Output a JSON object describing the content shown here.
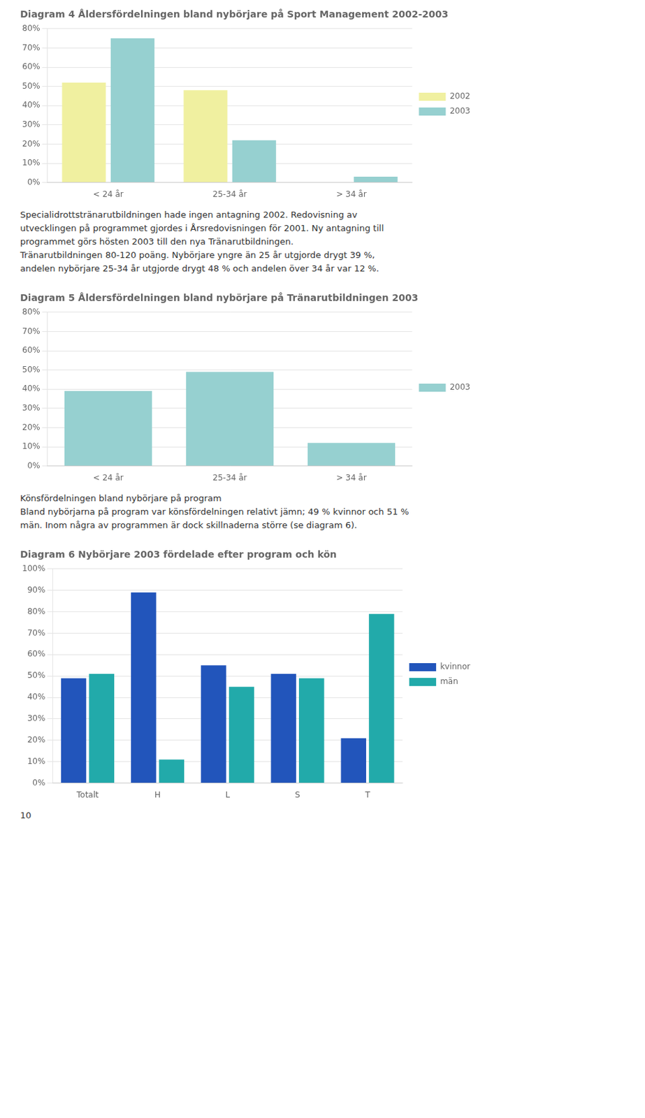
{
  "chart_data": [
    {
      "type": "bar",
      "title": "Diagram 4 Åldersfördelningen bland nybörjare på Sport Management 2002-2003",
      "categories": [
        "< 24 år",
        "25-34 år",
        "> 34 år"
      ],
      "series": [
        {
          "name": "2002",
          "color": "#f0f0a0",
          "values": [
            0.52,
            0.48,
            0.0
          ]
        },
        {
          "name": "2003",
          "color": "#96d0d0",
          "values": [
            0.75,
            0.22,
            0.03
          ]
        }
      ],
      "ylim": [
        0,
        0.8
      ],
      "yticks": [
        {
          "value": 0.0,
          "label": "0%"
        },
        {
          "value": 0.1,
          "label": "10%"
        },
        {
          "value": 0.2,
          "label": "20%"
        },
        {
          "value": 0.3,
          "label": "30%"
        },
        {
          "value": 0.4,
          "label": "40%"
        },
        {
          "value": 0.5,
          "label": "50%"
        },
        {
          "value": 0.6,
          "label": "60%"
        },
        {
          "value": 0.7,
          "label": "70%"
        },
        {
          "value": 0.8,
          "label": "80%"
        }
      ],
      "grid": true,
      "legend": "right",
      "annotations": [
        "Specialidrottstränarutbildningen hade ingen antagning 2002. Redovisning av",
        "utvecklingen på programmet gjordes i Årsredovisningen för 2001. Ny antagning till",
        "programmet görs hösten 2003 till den nya Tränarutbildningen.",
        "Tränarutbildningen 80-120 poäng. Nybörjare yngre än 25 år utgjorde drygt 39 %,",
        "andelen nybörjare 25-34 år utgjorde drygt 48 % och andelen över 34 år var 12 %."
      ]
    },
    {
      "type": "bar",
      "title": "Diagram 5 Åldersfördelningen bland nybörjare på Tränarutbildningen 2003",
      "categories": [
        "< 24 år",
        "25-34 år",
        "> 34 år"
      ],
      "series": [
        {
          "name": "2003",
          "color": "#96d0d0",
          "values": [
            0.39,
            0.49,
            0.12
          ]
        }
      ],
      "ylim": [
        0,
        0.8
      ],
      "yticks": [
        {
          "value": 0.0,
          "label": "0%"
        },
        {
          "value": 0.1,
          "label": "10%"
        },
        {
          "value": 0.2,
          "label": "20%"
        },
        {
          "value": 0.3,
          "label": "30%"
        },
        {
          "value": 0.4,
          "label": "40%"
        },
        {
          "value": 0.5,
          "label": "50%"
        },
        {
          "value": 0.6,
          "label": "60%"
        },
        {
          "value": 0.7,
          "label": "70%"
        },
        {
          "value": 0.8,
          "label": "80%"
        }
      ],
      "grid": true,
      "legend": "right",
      "annotations": [
        "Könsfördelningen bland nybörjare på program",
        "Bland nybörjarna på program var könsfördelningen relativt jämn; 49 % kvinnor och 51 %",
        "män. Inom några av programmen är dock skillnaderna större (se diagram 6)."
      ]
    },
    {
      "type": "bar",
      "title": "Diagram 6 Nybörjare 2003 fördelade efter program och kön",
      "categories": [
        "Totalt",
        "H",
        "L",
        "S",
        "T"
      ],
      "series": [
        {
          "name": "kvinnor",
          "color": "#2255bb",
          "values": [
            0.49,
            0.89,
            0.55,
            0.51,
            0.21
          ]
        },
        {
          "name": "män",
          "color": "#22aaaa",
          "values": [
            0.51,
            0.11,
            0.45,
            0.49,
            0.79
          ]
        }
      ],
      "ylim": [
        0,
        1.0
      ],
      "yticks": [
        {
          "value": 0.0,
          "label": "0%"
        },
        {
          "value": 0.1,
          "label": "10%"
        },
        {
          "value": 0.2,
          "label": "20%"
        },
        {
          "value": 0.3,
          "label": "30%"
        },
        {
          "value": 0.4,
          "label": "40%"
        },
        {
          "value": 0.5,
          "label": "50%"
        },
        {
          "value": 0.6,
          "label": "60%"
        },
        {
          "value": 0.7,
          "label": "70%"
        },
        {
          "value": 0.8,
          "label": "80%"
        },
        {
          "value": 0.9,
          "label": "90%"
        },
        {
          "value": 1.0,
          "label": "100%"
        }
      ],
      "grid": true,
      "legend": "right",
      "annotations": [
        "10"
      ]
    }
  ]
}
